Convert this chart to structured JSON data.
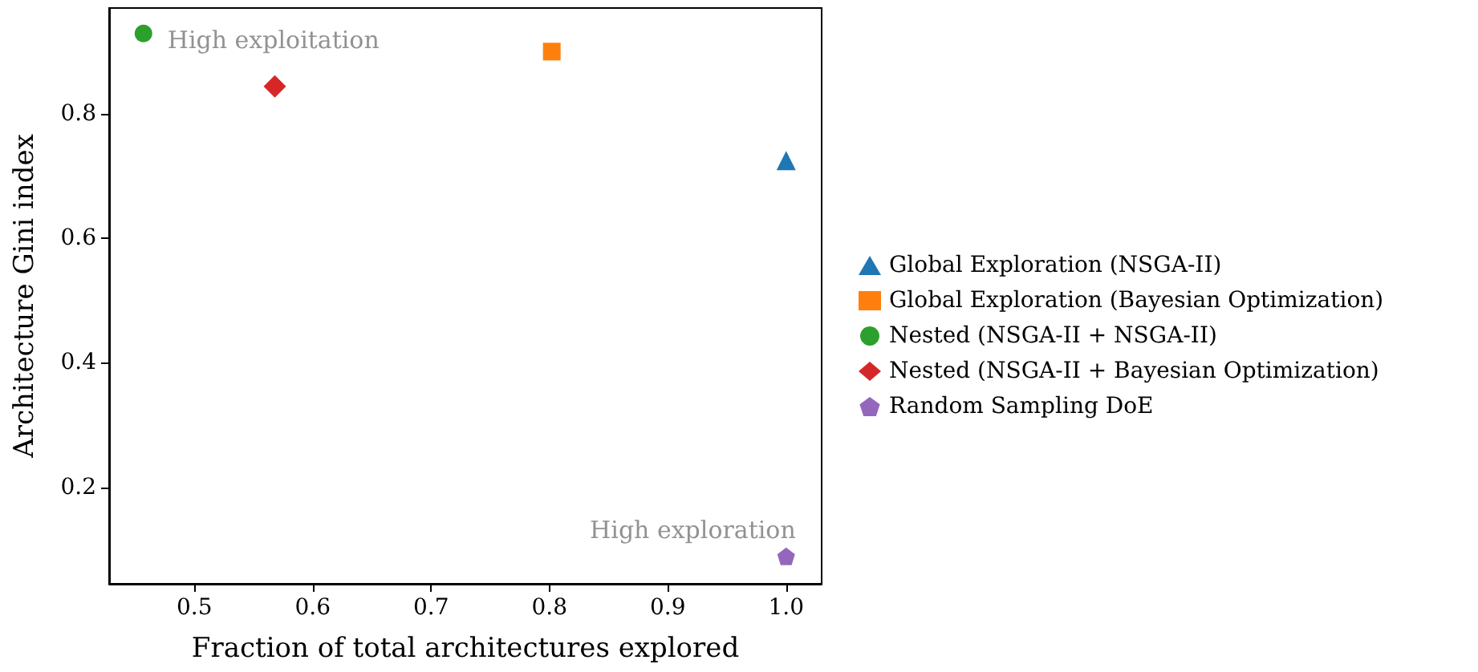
{
  "chart_data": {
    "type": "scatter",
    "xlabel": "Fraction of total architectures explored",
    "ylabel": "Architecture Gini index",
    "series": [
      {
        "name": "Global Exploration (NSGA-II)",
        "color": "#1f77b4",
        "marker": "triangle",
        "x": [
          1.0
        ],
        "values": [
          0.725
        ]
      },
      {
        "name": "Global Exploration (Bayesian Optimization)",
        "color": "#ff7f0e",
        "marker": "square",
        "x": [
          0.802
        ],
        "values": [
          0.9
        ]
      },
      {
        "name": "Nested (NSGA-II + NSGA-II)",
        "color": "#2ca02c",
        "marker": "circle",
        "x": [
          0.457
        ],
        "values": [
          0.929
        ]
      },
      {
        "name": "Nested (NSGA-II + Bayesian Optimization)",
        "color": "#d62728",
        "marker": "diamond",
        "x": [
          0.568
        ],
        "values": [
          0.844
        ]
      },
      {
        "name": "Random Sampling DoE",
        "color": "#9467bd",
        "x": [
          1.0
        ],
        "values": [
          0.089
        ]
      }
    ],
    "annotations": [
      {
        "text": "High exploitation",
        "x": 0.457,
        "y": 0.929
      },
      {
        "text": "High exploration",
        "x": 1.0,
        "y": 0.089
      }
    ],
    "xlim": [
      0.428,
      1.03
    ],
    "xticks": [
      0.5,
      0.6,
      0.7,
      0.8,
      0.9,
      {
        "value": 1,
        "label": "1.0"
      }
    ],
    "ylim": [
      0.045,
      0.97
    ],
    "yticks": [
      0.2,
      0.4,
      0.6,
      0.8
    ],
    "grid": false,
    "legend": "right"
  }
}
